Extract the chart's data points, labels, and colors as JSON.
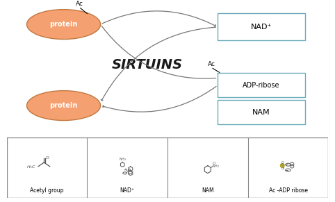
{
  "title": "SIRTUINS",
  "title_fontsize": 14,
  "title_weight": "bold",
  "title_color": "#1a1a1a",
  "protein_color": "#f5a070",
  "protein_edge_color": "#c07840",
  "nad_label": "NAD⁺",
  "adp_label": "ADP-ribose",
  "nam_label": "NAM",
  "bottom_labels": [
    "Acetyl group",
    "NAD⁺",
    "NAM",
    "Ac -ADP ribose"
  ],
  "background_color": "#ffffff",
  "box_edge_color": "#6aabbb",
  "arrow_color": "#777777",
  "divider_color": "#888888"
}
